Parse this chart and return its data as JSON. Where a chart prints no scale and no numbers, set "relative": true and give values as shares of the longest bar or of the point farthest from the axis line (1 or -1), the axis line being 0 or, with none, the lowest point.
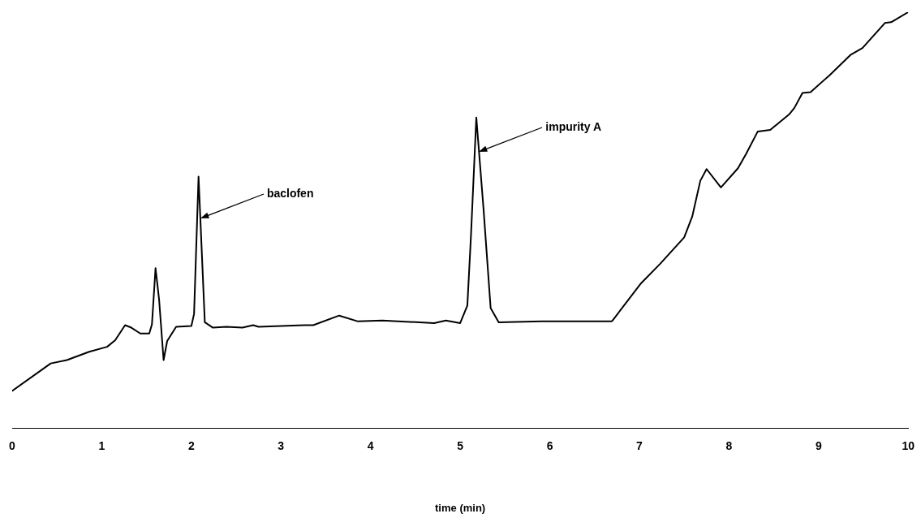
{
  "chart_data": {
    "type": "line",
    "relative": true,
    "xlabel": "time (min)",
    "xlim": [
      0,
      10
    ],
    "xticks": [
      0,
      1,
      2,
      3,
      4,
      5,
      6,
      7,
      8,
      9,
      10
    ],
    "tick_labels": "x",
    "grid": false,
    "legend": false,
    "marker": "none",
    "line_style": "solid",
    "series": [
      {
        "color": "#000000",
        "x": [
          0,
          0.43,
          0.61,
          0.86,
          1.06,
          1.15,
          1.26,
          1.33,
          1.43,
          1.53,
          1.56,
          1.6,
          1.64,
          1.69,
          1.73,
          1.83,
          2.0,
          2.03,
          2.08,
          2.15,
          2.24,
          2.39,
          2.57,
          2.69,
          2.75,
          3.26,
          3.36,
          3.65,
          3.86,
          4.13,
          4.71,
          4.84,
          5.0,
          5.08,
          5.12,
          5.18,
          5.26,
          5.34,
          5.43,
          5.91,
          6.69,
          6.7,
          7.02,
          7.23,
          7.5,
          7.59,
          7.68,
          7.75,
          7.91,
          8.1,
          8.19,
          8.32,
          8.46,
          8.67,
          8.73,
          8.82,
          8.91,
          9.12,
          9.36,
          9.49,
          9.74,
          9.81,
          10
        ],
        "values": [
          0.09,
          0.156,
          0.164,
          0.184,
          0.196,
          0.212,
          0.248,
          0.242,
          0.228,
          0.228,
          0.25,
          0.385,
          0.309,
          0.164,
          0.21,
          0.244,
          0.246,
          0.275,
          0.605,
          0.255,
          0.242,
          0.244,
          0.242,
          0.248,
          0.244,
          0.248,
          0.248,
          0.271,
          0.257,
          0.259,
          0.253,
          0.259,
          0.253,
          0.295,
          0.461,
          0.747,
          0.529,
          0.289,
          0.255,
          0.257,
          0.257,
          0.259,
          0.349,
          0.395,
          0.459,
          0.509,
          0.595,
          0.623,
          0.579,
          0.625,
          0.659,
          0.713,
          0.717,
          0.754,
          0.77,
          0.806,
          0.808,
          0.848,
          0.898,
          0.914,
          0.974,
          0.976,
          1
        ]
      }
    ],
    "annotations": [
      {
        "text": "baclofen",
        "x": 2.1,
        "y": 0.505
      },
      {
        "text": "impurity A",
        "x": 5.21,
        "y": 0.665
      }
    ]
  }
}
